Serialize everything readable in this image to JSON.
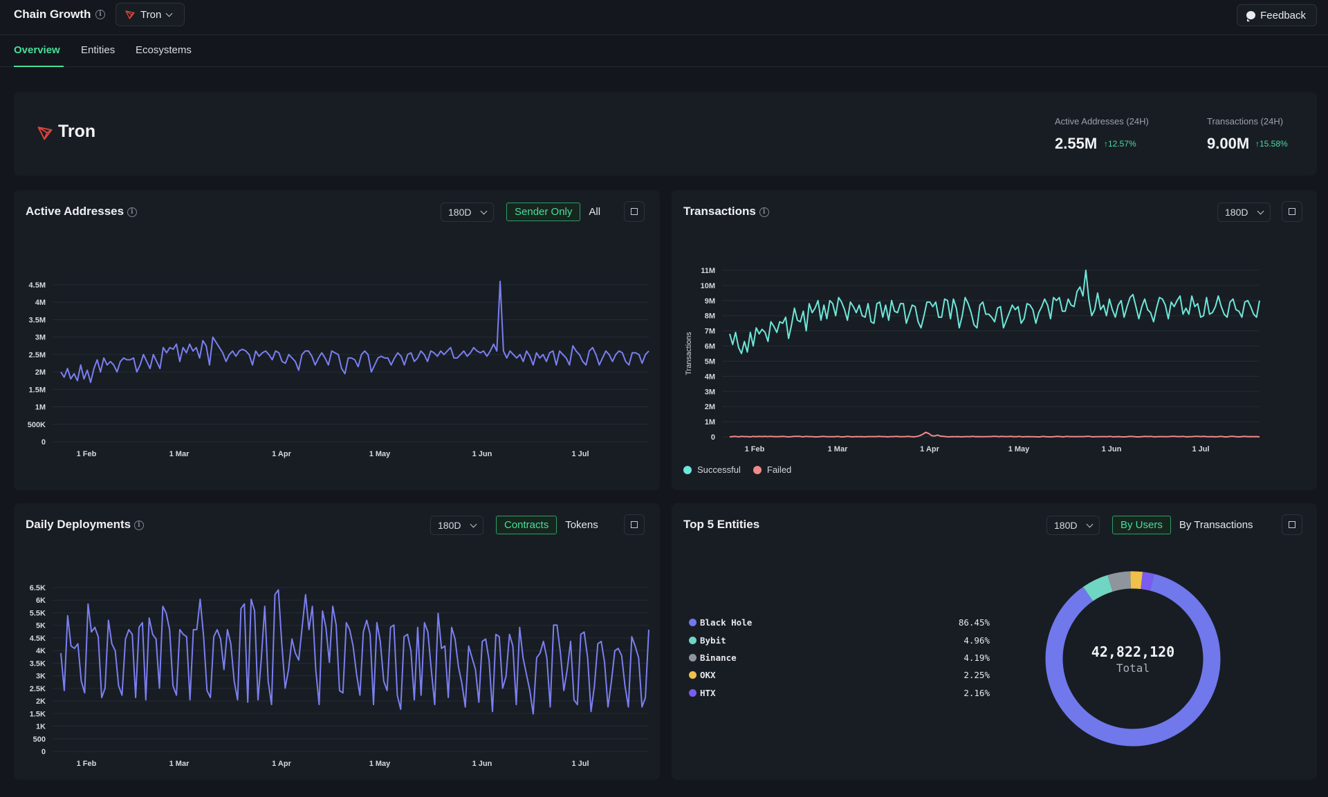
{
  "app": {
    "title": "Chain Growth",
    "chain": "Tron",
    "feedback": "Feedback"
  },
  "tabs": [
    {
      "label": "Overview"
    },
    {
      "label": "Entities"
    },
    {
      "label": "Ecosystems"
    }
  ],
  "header": {
    "name": "Tron",
    "kpis": [
      {
        "label": "Active Addresses (24H)",
        "value": "2.55M",
        "change": "12.57%"
      },
      {
        "label": "Transactions (24H)",
        "value": "9.00M",
        "change": "15.58%"
      }
    ]
  },
  "colors": {
    "accent": "#4ade9a",
    "line_blue": "#7b7ff0",
    "line_teal": "#6ee7d8",
    "line_red": "#f08a8a"
  },
  "cards": {
    "active_addresses": {
      "title": "Active Addresses",
      "range": "180D",
      "toggle": [
        "Sender Only",
        "All"
      ]
    },
    "transactions": {
      "title": "Transactions",
      "range": "180D",
      "legend": [
        "Successful",
        "Failed"
      ]
    },
    "deployments": {
      "title": "Daily Deployments",
      "range": "180D",
      "toggle": [
        "Contracts",
        "Tokens"
      ]
    },
    "entities": {
      "title": "Top 5 Entities",
      "range": "180D",
      "toggle": [
        "By Users",
        "By Transactions"
      ],
      "total": "42,822,120",
      "total_label": "Total",
      "items": [
        {
          "name": "Black Hole",
          "pct": "86.45%",
          "color": "#7078ec"
        },
        {
          "name": "Bybit",
          "pct": "4.96%",
          "color": "#6fd6c3"
        },
        {
          "name": "Binance",
          "pct": "4.19%",
          "color": "#8f959c"
        },
        {
          "name": "OKX",
          "pct": "2.25%",
          "color": "#f0c14a"
        },
        {
          "name": "HTX",
          "pct": "2.16%",
          "color": "#7a5cf0"
        }
      ]
    }
  },
  "chart_data": [
    {
      "type": "line",
      "x_ticks": [
        "1 Feb",
        "1 Mar",
        "1 Apr",
        "1 May",
        "1 Jun",
        "1 Jul"
      ],
      "y_ticks": [
        "0",
        "500K",
        "1M",
        "1.5M",
        "2M",
        "2.5M",
        "3M",
        "3.5M",
        "4M",
        "4.5M"
      ],
      "ylim": [
        0,
        4500000
      ],
      "series": [
        {
          "values": [
            2.0,
            1.85,
            2.1,
            1.8,
            1.95,
            1.75,
            2.2,
            1.8,
            2.05,
            1.7,
            2.1,
            2.35,
            2.0,
            2.4,
            2.2,
            2.3,
            2.2,
            2.0,
            2.3,
            2.4,
            2.35,
            2.35,
            2.4,
            2.0,
            2.2,
            2.5,
            2.3,
            2.1,
            2.5,
            2.3,
            2.1,
            2.7,
            2.55,
            2.7,
            2.65,
            2.8,
            2.3,
            2.7,
            2.55,
            2.8,
            2.6,
            2.7,
            2.4,
            2.9,
            2.75,
            2.2,
            3.0,
            2.85,
            2.7,
            2.55,
            2.3,
            2.5,
            2.6,
            2.45,
            2.6,
            2.65,
            2.6,
            2.5,
            2.2,
            2.6,
            2.45,
            2.55,
            2.6,
            2.5,
            2.35,
            2.6,
            2.55,
            2.3,
            2.25,
            2.5,
            2.4,
            2.3,
            2.05,
            2.5,
            2.6,
            2.6,
            2.45,
            2.2,
            2.4,
            2.55,
            2.4,
            2.2,
            2.6,
            2.55,
            2.5,
            2.1,
            1.95,
            2.4,
            2.4,
            2.35,
            2.15,
            2.5,
            2.6,
            2.5,
            2.0,
            2.2,
            2.4,
            2.45,
            2.4,
            2.4,
            2.2,
            2.4,
            2.55,
            2.45,
            2.2,
            2.5,
            2.55,
            2.3,
            2.4,
            2.6,
            2.5,
            2.3,
            2.6,
            2.55,
            2.45,
            2.6,
            2.5,
            2.6,
            2.7,
            2.4,
            2.4,
            2.5,
            2.6,
            2.45,
            2.55,
            2.7,
            2.6,
            2.55,
            2.6,
            2.45,
            2.6,
            2.8,
            2.6,
            4.6,
            2.6,
            2.4,
            2.6,
            2.5,
            2.4,
            2.5,
            2.3,
            2.6,
            2.45,
            2.2,
            2.55,
            2.4,
            2.5,
            2.3,
            2.55,
            2.6,
            2.2,
            2.6,
            2.5,
            2.4,
            2.2,
            2.75,
            2.6,
            2.5,
            2.3,
            2.2,
            2.6,
            2.7,
            2.5,
            2.2,
            2.4,
            2.6,
            2.5,
            2.3,
            2.5,
            2.6,
            2.55,
            2.3,
            2.2,
            2.55,
            2.55,
            2.5,
            2.25,
            2.5,
            2.6
          ]
        }
      ]
    },
    {
      "type": "line",
      "x_ticks": [
        "1 Feb",
        "1 Mar",
        "1 Apr",
        "1 May",
        "1 Jun",
        "1 Jul"
      ],
      "y_ticks": [
        "0",
        "1M",
        "2M",
        "3M",
        "4M",
        "5M",
        "6M",
        "7M",
        "8M",
        "9M",
        "10M",
        "11M"
      ],
      "ylim": [
        0,
        11000000
      ],
      "ylabel": "Transactions",
      "series": [
        {
          "name": "Successful",
          "values": [
            6.8,
            6.1,
            6.9,
            5.9,
            5.5,
            6.3,
            5.6,
            6.9,
            6.0,
            7.2,
            6.8,
            7.1,
            6.9,
            6.3,
            7.6,
            7.3,
            6.9,
            7.6,
            7.5,
            7.9,
            6.5,
            7.4,
            8.5,
            7.7,
            7.6,
            8.3,
            7.0,
            8.8,
            8.2,
            8.5,
            9.0,
            7.7,
            8.7,
            7.8,
            9.0,
            8.8,
            8.0,
            9.2,
            8.9,
            8.4,
            7.7,
            8.9,
            8.6,
            8.2,
            8.7,
            8.0,
            7.9,
            8.8,
            7.6,
            7.5,
            8.8,
            8.9,
            7.9,
            8.7,
            7.7,
            9.0,
            8.3,
            8.2,
            8.8,
            8.8,
            7.5,
            8.1,
            8.7,
            8.6,
            7.6,
            7.2,
            8.0,
            8.9,
            8.9,
            8.6,
            8.9,
            7.9,
            7.9,
            9.1,
            9.0,
            7.8,
            9.1,
            8.5,
            7.2,
            8.0,
            9.2,
            8.8,
            8.2,
            7.4,
            7.2,
            8.7,
            8.9,
            8.1,
            8.1,
            7.9,
            7.6,
            8.5,
            8.6,
            7.2,
            7.7,
            8.2,
            8.7,
            8.4,
            8.6,
            7.5,
            7.8,
            8.8,
            8.7,
            8.4,
            7.5,
            8.2,
            8.6,
            9.1,
            8.7,
            7.8,
            9.2,
            9.0,
            9.2,
            8.3,
            8.3,
            9.1,
            8.7,
            8.6,
            9.6,
            9.9,
            9.3,
            11.0,
            9.1,
            8.0,
            8.4,
            9.5,
            8.4,
            8.7,
            8.0,
            9.1,
            8.4,
            7.9,
            8.7,
            9.0,
            7.9,
            8.6,
            9.2,
            9.4,
            8.6,
            7.8,
            8.6,
            9.1,
            8.4,
            8.2,
            7.6,
            8.5,
            9.2,
            9.1,
            8.7,
            7.8,
            8.9,
            8.6,
            9.0,
            9.3,
            8.1,
            8.5,
            8.1,
            9.3,
            8.6,
            8.8,
            7.9,
            8.0,
            9.2,
            8.1,
            8.2,
            8.6,
            9.3,
            8.6,
            8.1,
            7.9,
            8.9,
            9.1,
            8.4,
            8.3,
            7.9,
            8.9,
            9.0,
            8.6,
            8.1,
            7.9,
            9.0
          ]
        },
        {
          "name": "Failed",
          "values": [
            0.0,
            0.02,
            0.03,
            0.0,
            0.03,
            0.02,
            0.02,
            0.0,
            0.03,
            0.01,
            0.03,
            0.02,
            0.03,
            0.02,
            0.03,
            0.02,
            0.01,
            0.02,
            0.03,
            0.02,
            0.0,
            0.01,
            0.03,
            0.03,
            0.03,
            0.0,
            0.03,
            0.02,
            0.02,
            0.0,
            0.0,
            0.02,
            0.03,
            0.01,
            0.01,
            0.01,
            0.01,
            0.03,
            0.0,
            0.0,
            0.03,
            0.02,
            0.0,
            0.02,
            0.01,
            0.02,
            0.0,
            0.02,
            0.02,
            0.02,
            0.02,
            0.03,
            0.02,
            0.02,
            0.0,
            0.02,
            0.02,
            0.03,
            0.01,
            0.01,
            0.02,
            0.03,
            0.01,
            0.0,
            0.03,
            0.08,
            0.18,
            0.3,
            0.22,
            0.08,
            0.06,
            0.12,
            0.05,
            0.03,
            0.01,
            0.0,
            0.02,
            0.01,
            0.02,
            0.0,
            0.01,
            0.02,
            0.01,
            0.03,
            0.01,
            0.02,
            0.01,
            0.01,
            0.02,
            0.02,
            0.03,
            0.03,
            0.01,
            0.03,
            0.02,
            0.02,
            0.03,
            0.01,
            0.01,
            0.03,
            0.0,
            0.01,
            0.02,
            0.01,
            0.01,
            0.0,
            0.0,
            0.03,
            0.01,
            0.0,
            0.0,
            0.02,
            0.03,
            0.02,
            0.0,
            0.03,
            0.02,
            0.02,
            0.01,
            0.02,
            0.02,
            0.02,
            0.03,
            0.03,
            0.0,
            0.01,
            0.01,
            0.02,
            0.02,
            0.01,
            0.03,
            0.0,
            0.01,
            0.02,
            0.0,
            0.0,
            0.02,
            0.03,
            0.02,
            0.0,
            0.0,
            0.02,
            0.03,
            0.02,
            0.03,
            0.0,
            0.01,
            0.02,
            0.02,
            0.01,
            0.02,
            0.03,
            0.03,
            0.02,
            0.02,
            0.03,
            0.0,
            0.01,
            0.02,
            0.03,
            0.03,
            0.02,
            0.03,
            0.01,
            0.01,
            0.02,
            0.0,
            0.02,
            0.03,
            0.0,
            0.0,
            0.03,
            0.03,
            0.01,
            0.0,
            0.02,
            0.03,
            0.01,
            0.02,
            0.01,
            0.02,
            0.0
          ]
        }
      ]
    },
    {
      "type": "line",
      "x_ticks": [
        "1 Feb",
        "1 Mar",
        "1 Apr",
        "1 May",
        "1 Jun",
        "1 Jul"
      ],
      "y_ticks": [
        "0",
        "500",
        "1K",
        "1.5K",
        "2K",
        "2.5K",
        "3K",
        "3.5K",
        "4K",
        "4.5K",
        "5K",
        "5.5K",
        "6K",
        "6.5K"
      ],
      "ylim": [
        0,
        7000
      ],
      "series": [
        {
          "values": [
            4.2,
            2.6,
            5.8,
            4.5,
            4.4,
            4.6,
            3.0,
            2.5,
            6.3,
            5.1,
            5.3,
            4.9,
            2.3,
            2.7,
            5.6,
            4.6,
            4.3,
            2.8,
            2.4,
            4.8,
            5.2,
            5.0,
            2.3,
            5.3,
            5.5,
            2.2,
            5.7,
            5.0,
            4.8,
            2.7,
            6.2,
            5.9,
            5.2,
            2.8,
            2.4,
            5.2,
            5.0,
            4.9,
            2.2,
            5.2,
            5.2,
            6.5,
            4.9,
            2.6,
            2.3,
            4.9,
            5.2,
            4.8,
            3.5,
            5.2,
            4.6,
            3.0,
            2.2,
            6.1,
            6.3,
            2.1,
            6.5,
            6.0,
            2.2,
            4.0,
            6.2,
            3.0,
            2.0,
            6.7,
            6.9,
            4.6,
            2.7,
            3.5,
            4.8,
            4.2,
            3.9,
            5.3,
            6.7,
            5.2,
            6.2,
            3.5,
            2.0,
            6.0,
            5.3,
            3.8,
            6.2,
            5.4,
            2.6,
            2.5,
            5.5,
            5.2,
            4.5,
            3.3,
            2.4,
            5.1,
            5.6,
            5.0,
            2.0,
            5.5,
            4.7,
            3.0,
            2.6,
            5.3,
            5.4,
            2.4,
            1.8,
            4.9,
            5.0,
            4.3,
            2.2,
            5.3,
            2.4,
            5.5,
            5.1,
            3.5,
            2.0,
            5.9,
            4.4,
            4.5,
            2.3,
            5.3,
            4.8,
            3.6,
            2.9,
            1.9,
            4.5,
            4.0,
            3.5,
            2.1,
            4.7,
            4.8,
            3.9,
            1.7,
            5.0,
            4.9,
            2.7,
            3.2,
            5.0,
            4.5,
            2.0,
            5.3,
            4.0,
            3.3,
            2.6,
            1.6,
            4.0,
            4.2,
            4.7,
            4.0,
            1.9,
            5.4,
            5.4,
            4.2,
            2.6,
            3.5,
            4.7,
            2.2,
            2.0,
            5.0,
            5.1,
            4.0,
            1.7,
            2.8,
            4.6,
            4.7,
            3.8,
            1.9,
            3.0,
            4.3,
            4.4,
            4.1,
            2.8,
            1.9,
            4.9,
            4.5,
            4.0,
            1.9,
            2.3,
            5.2
          ]
        }
      ]
    },
    {
      "type": "pie",
      "categories": [
        "Black Hole",
        "Bybit",
        "Binance",
        "OKX",
        "HTX"
      ],
      "values": [
        86.45,
        4.96,
        4.19,
        2.25,
        2.16
      ],
      "total": "42,822,120"
    }
  ]
}
